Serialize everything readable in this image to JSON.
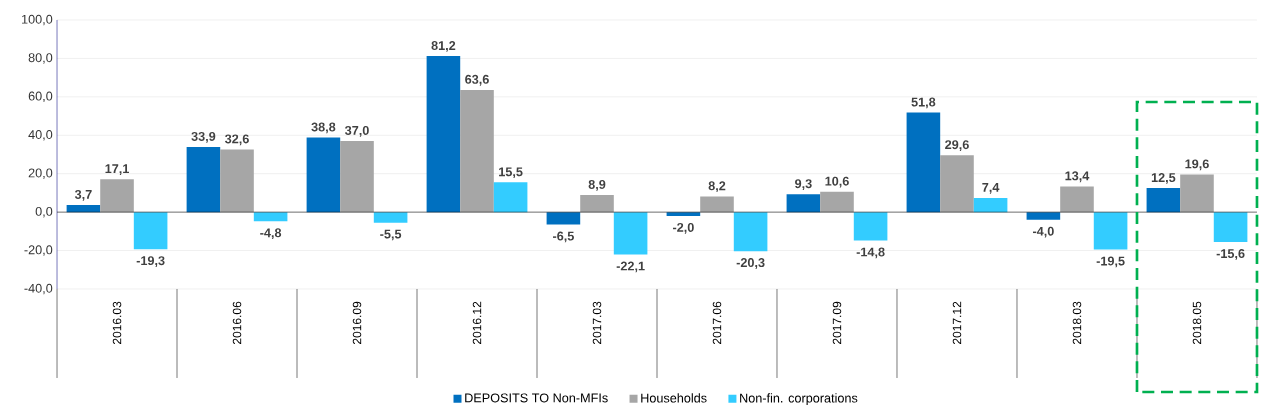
{
  "chart_data": {
    "type": "bar",
    "categories": [
      "2016.03",
      "2016.06",
      "2016.09",
      "2016.12",
      "2017.03",
      "2017.06",
      "2017.09",
      "2017.12",
      "2018.03",
      "2018.05"
    ],
    "series": [
      {
        "name": "DEPOSITS TO Non-MFIs",
        "color": "#0070c0",
        "values": [
          3.7,
          33.9,
          38.8,
          81.2,
          -6.5,
          -2.0,
          9.3,
          51.8,
          -4.0,
          12.5
        ],
        "value_labels": [
          "3,7",
          "33,9",
          "38,8",
          "81,2",
          "-6,5",
          "-2,0",
          "9,3",
          "51,8",
          "-4,0",
          "12,5"
        ]
      },
      {
        "name": "Households",
        "color": "#a6a6a6",
        "values": [
          17.1,
          32.6,
          37.0,
          63.6,
          8.9,
          8.2,
          10.6,
          29.6,
          13.4,
          19.6
        ],
        "value_labels": [
          "17,1",
          "32,6",
          "37,0",
          "63,6",
          "8,9",
          "8,2",
          "10,6",
          "29,6",
          "13,4",
          "19,6"
        ]
      },
      {
        "name": "Non-fin. corporations",
        "color": "#33ccff",
        "values": [
          -19.3,
          -4.8,
          -5.5,
          15.5,
          -22.1,
          -20.3,
          -14.8,
          7.4,
          -19.5,
          -15.6
        ],
        "value_labels": [
          "-19,3",
          "-4,8",
          "-5,5",
          "15,5",
          "-22,1",
          "-20,3",
          "-14,8",
          "7,4",
          "-19,5",
          "-15,6"
        ]
      }
    ],
    "ylim": [
      -40,
      100
    ],
    "yticks": [
      {
        "value": -40,
        "label": "-40,0"
      },
      {
        "value": -20,
        "label": "-20,0"
      },
      {
        "value": 0,
        "label": "0,0"
      },
      {
        "value": 20,
        "label": "20,0"
      },
      {
        "value": 40,
        "label": "40,0"
      },
      {
        "value": 60,
        "label": "60,0"
      },
      {
        "value": 80,
        "label": "80,0"
      },
      {
        "value": 100,
        "label": "100,0"
      }
    ],
    "grid": "y",
    "legend": "bottom"
  }
}
